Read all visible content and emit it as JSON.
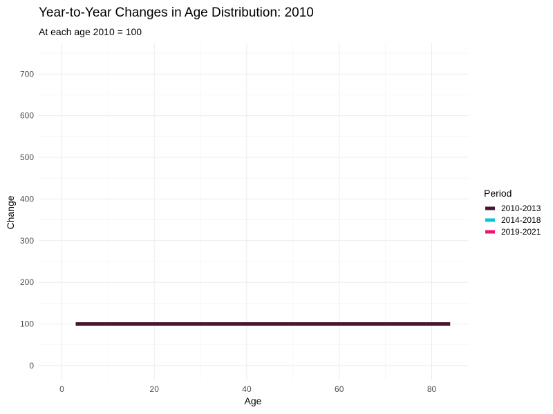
{
  "chart_data": {
    "type": "line",
    "title": "Year-to-Year Changes in Age Distribution: 2010",
    "subtitle": "At each age 2010 = 100",
    "xlabel": "Age",
    "ylabel": "Change",
    "xlim": [
      -5,
      88
    ],
    "ylim": [
      -35,
      775
    ],
    "x_ticks": [
      0,
      20,
      40,
      60,
      80
    ],
    "y_ticks": [
      0,
      100,
      200,
      300,
      400,
      500,
      600,
      700
    ],
    "grid": true,
    "legend": {
      "title": "Period",
      "position": "right",
      "entries": [
        "2010-2013",
        "2014-2018",
        "2019-2021"
      ]
    },
    "series": [
      {
        "name": "2010-2013",
        "color": "#4a1535",
        "x": [
          3,
          84
        ],
        "y": [
          100,
          100
        ]
      }
    ],
    "legend_colors": {
      "2010-2013": "#4a1535",
      "2014-2018": "#00c8d7",
      "2019-2021": "#f0146e"
    }
  }
}
